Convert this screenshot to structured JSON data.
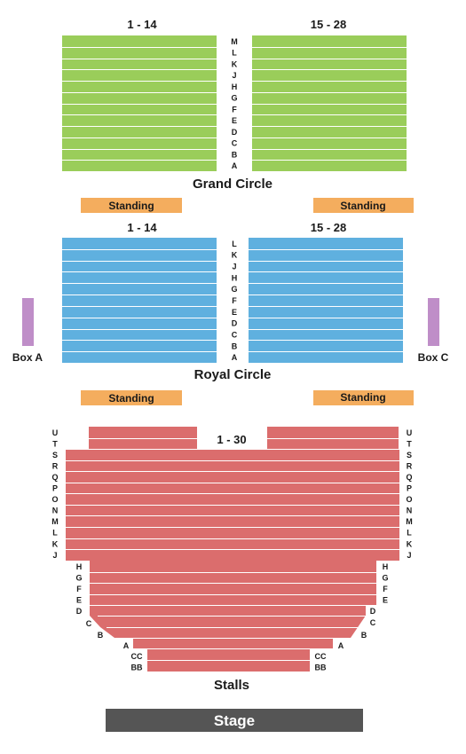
{
  "colors": {
    "grand_circle": "#9acd5a",
    "royal_circle": "#5fb0df",
    "stalls": "#db6d6d",
    "standing": "#f4ad5e",
    "box": "#bf8ec8",
    "stage": "#555555",
    "row_line": "#ffffff"
  },
  "grand_circle": {
    "name": "Grand Circle",
    "left_range": "1 - 14",
    "right_range": "15 - 28",
    "rows": [
      "M",
      "L",
      "K",
      "J",
      "H",
      "G",
      "F",
      "E",
      "D",
      "C",
      "B",
      "A"
    ]
  },
  "standing_upper": {
    "left": "Standing",
    "right": "Standing"
  },
  "royal_circle": {
    "name": "Royal Circle",
    "left_range": "1 - 14",
    "right_range": "15 - 28",
    "rows": [
      "L",
      "K",
      "J",
      "H",
      "G",
      "F",
      "E",
      "D",
      "C",
      "B",
      "A"
    ]
  },
  "boxes": {
    "left": "Box A",
    "right": "Box C"
  },
  "standing_lower": {
    "left": "Standing",
    "right": "Standing"
  },
  "stalls": {
    "name": "Stalls",
    "range": "1 - 30",
    "rows_upper": [
      "U",
      "T",
      "S",
      "R",
      "Q",
      "P",
      "O",
      "N",
      "M",
      "L",
      "K",
      "J"
    ],
    "rows_middle": [
      "H",
      "G",
      "F",
      "E"
    ],
    "rows_d": "D",
    "rows_c": "C",
    "rows_b": "B",
    "rows_a": "A",
    "rows_front": [
      "CC",
      "BB"
    ]
  },
  "stage": {
    "label": "Stage"
  }
}
